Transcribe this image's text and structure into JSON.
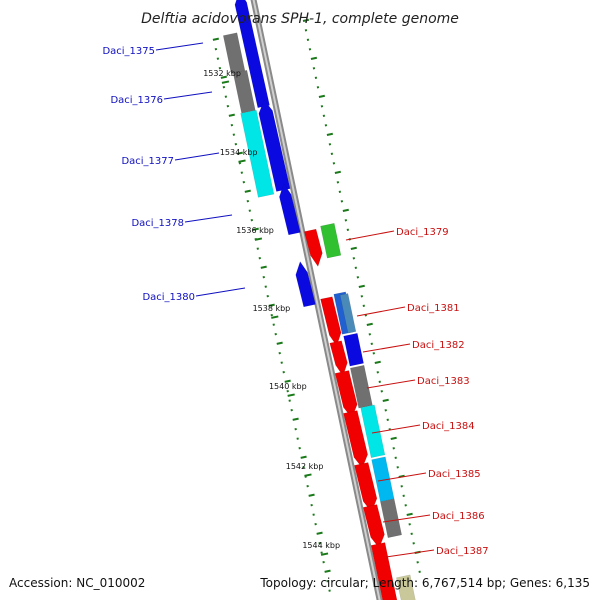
{
  "title": "Delftia acidovorans SPH-1, complete genome",
  "accession": "Accession: NC_010002",
  "summary": "Topology: circular; Length: 6,767,514 bp; Genes: 6,135",
  "colors": {
    "forward_label": "#1010c0",
    "reverse_label": "#c81010",
    "backbone": "#8a8a8a",
    "tick": "#1a7a1a"
  },
  "scale_labels": [
    "1532 kbp",
    "1534 kbp",
    "1536 kbp",
    "1538 kbp",
    "1540 kbp",
    "1542 kbp",
    "1544 kbp"
  ],
  "genes": [
    {
      "name": "Daci_1375",
      "strand": "forward"
    },
    {
      "name": "Daci_1376",
      "strand": "forward"
    },
    {
      "name": "Daci_1377",
      "strand": "forward"
    },
    {
      "name": "Daci_1378",
      "strand": "forward"
    },
    {
      "name": "Daci_1379",
      "strand": "reverse"
    },
    {
      "name": "Daci_1380",
      "strand": "forward"
    },
    {
      "name": "Daci_1381",
      "strand": "reverse"
    },
    {
      "name": "Daci_1382",
      "strand": "reverse"
    },
    {
      "name": "Daci_1383",
      "strand": "reverse"
    },
    {
      "name": "Daci_1384",
      "strand": "reverse"
    },
    {
      "name": "Daci_1385",
      "strand": "reverse"
    },
    {
      "name": "Daci_1386",
      "strand": "reverse"
    },
    {
      "name": "Daci_1387",
      "strand": "reverse"
    }
  ]
}
